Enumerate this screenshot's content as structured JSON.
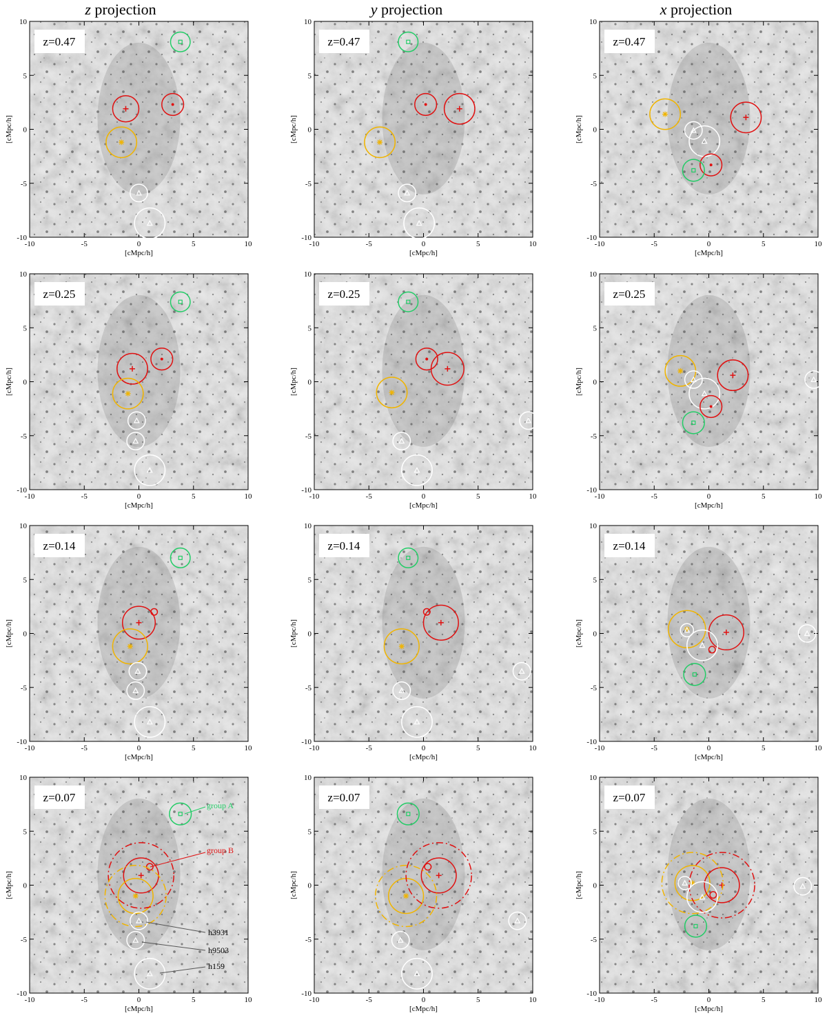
{
  "columns": [
    {
      "key": "z",
      "title_var": "z",
      "title_rest": " projection"
    },
    {
      "key": "y",
      "title_var": "y",
      "title_rest": " projection"
    },
    {
      "key": "x",
      "title_var": "x",
      "title_rest": " projection"
    }
  ],
  "rows": [
    {
      "label": "z=0.47"
    },
    {
      "label": "z=0.25"
    },
    {
      "label": "z=0.14"
    },
    {
      "label": "z=0.07"
    }
  ],
  "axes": {
    "xlabel": "[cMpc/h]",
    "ylabel": "[cMpc/h]",
    "range": [
      -10,
      10
    ],
    "ticks": [
      -10,
      -5,
      0,
      5,
      10
    ]
  },
  "colors": {
    "group_a": "#22cc66",
    "group_b": "#e01010",
    "yellow": "#f0b400",
    "white_halo": "#ffffff",
    "annot_gray": "#555555"
  },
  "annotations": {
    "group_a": "group A",
    "group_b": "group B",
    "h3931": "h3931",
    "h9503": "h9503",
    "h159": "h159"
  },
  "panels": [
    [
      {
        "markers": [
          {
            "type": "square",
            "color": "group_a",
            "x": 3.8,
            "y": 8.1,
            "r": 0.9
          },
          {
            "type": "plus",
            "color": "group_b",
            "x": -1.2,
            "y": 1.9,
            "r": 1.2
          },
          {
            "type": "dot",
            "color": "group_b",
            "x": 3.1,
            "y": 2.3,
            "r": 1.0
          },
          {
            "type": "star",
            "color": "yellow",
            "x": -1.6,
            "y": -1.2,
            "r": 1.4
          },
          {
            "type": "tri",
            "color": "white_halo",
            "x": 0.0,
            "y": -5.9,
            "r": 0.8
          },
          {
            "type": "tri",
            "color": "white_halo",
            "x": 1.0,
            "y": -8.7,
            "r": 1.4
          }
        ]
      },
      {
        "markers": [
          {
            "type": "square",
            "color": "group_a",
            "x": -1.4,
            "y": 8.1,
            "r": 0.9
          },
          {
            "type": "dot",
            "color": "group_b",
            "x": 0.2,
            "y": 2.3,
            "r": 1.0
          },
          {
            "type": "plus",
            "color": "group_b",
            "x": 3.3,
            "y": 1.9,
            "r": 1.4
          },
          {
            "type": "star",
            "color": "yellow",
            "x": -4.0,
            "y": -1.2,
            "r": 1.4
          },
          {
            "type": "tri",
            "color": "white_halo",
            "x": -1.5,
            "y": -5.9,
            "r": 0.8
          },
          {
            "type": "tri",
            "color": "white_halo",
            "x": -0.4,
            "y": -8.7,
            "r": 1.4
          }
        ]
      },
      {
        "markers": [
          {
            "type": "star",
            "color": "yellow",
            "x": -4.0,
            "y": 1.4,
            "r": 1.4
          },
          {
            "type": "plus",
            "color": "group_b",
            "x": 3.4,
            "y": 1.1,
            "r": 1.4
          },
          {
            "type": "tri",
            "color": "white_halo",
            "x": -1.4,
            "y": -0.1,
            "r": 0.8
          },
          {
            "type": "tri",
            "color": "white_halo",
            "x": -0.4,
            "y": -1.1,
            "r": 1.4
          },
          {
            "type": "dot",
            "color": "group_b",
            "x": 0.2,
            "y": -3.3,
            "r": 1.0
          },
          {
            "type": "square",
            "color": "group_a",
            "x": -1.4,
            "y": -3.8,
            "r": 1.0
          }
        ]
      }
    ],
    [
      {
        "markers": [
          {
            "type": "square",
            "color": "group_a",
            "x": 3.8,
            "y": 7.4,
            "r": 0.9
          },
          {
            "type": "dot",
            "color": "group_b",
            "x": 2.1,
            "y": 2.1,
            "r": 1.0
          },
          {
            "type": "plus",
            "color": "group_b",
            "x": -0.6,
            "y": 1.2,
            "r": 1.4
          },
          {
            "type": "star",
            "color": "yellow",
            "x": -1.0,
            "y": -1.1,
            "r": 1.4
          },
          {
            "type": "tri",
            "color": "white_halo",
            "x": -0.2,
            "y": -3.6,
            "r": 0.8
          },
          {
            "type": "tri",
            "color": "white_halo",
            "x": -0.3,
            "y": -5.5,
            "r": 0.8
          },
          {
            "type": "tri",
            "color": "white_halo",
            "x": 1.0,
            "y": -8.2,
            "r": 1.4
          }
        ]
      },
      {
        "markers": [
          {
            "type": "square",
            "color": "group_a",
            "x": -1.4,
            "y": 7.4,
            "r": 0.9
          },
          {
            "type": "dot",
            "color": "group_b",
            "x": 0.3,
            "y": 2.1,
            "r": 1.0
          },
          {
            "type": "plus",
            "color": "group_b",
            "x": 2.2,
            "y": 1.2,
            "r": 1.5
          },
          {
            "type": "star",
            "color": "yellow",
            "x": -2.9,
            "y": -1.0,
            "r": 1.4
          },
          {
            "type": "tri",
            "color": "white_halo",
            "x": 9.6,
            "y": -3.6,
            "r": 0.8
          },
          {
            "type": "tri",
            "color": "white_halo",
            "x": -2.0,
            "y": -5.5,
            "r": 0.8
          },
          {
            "type": "tri",
            "color": "white_halo",
            "x": -0.6,
            "y": -8.2,
            "r": 1.4
          }
        ]
      },
      {
        "markers": [
          {
            "type": "star",
            "color": "yellow",
            "x": -2.6,
            "y": 1.0,
            "r": 1.4
          },
          {
            "type": "plus",
            "color": "group_b",
            "x": 2.2,
            "y": 0.6,
            "r": 1.4
          },
          {
            "type": "tri",
            "color": "white_halo",
            "x": -1.4,
            "y": 0.2,
            "r": 0.8
          },
          {
            "type": "tri",
            "color": "white_halo",
            "x": 9.6,
            "y": 0.2,
            "r": 0.8
          },
          {
            "type": "tri",
            "color": "white_halo",
            "x": -0.4,
            "y": -1.1,
            "r": 1.4
          },
          {
            "type": "dot",
            "color": "group_b",
            "x": 0.2,
            "y": -2.3,
            "r": 1.0
          },
          {
            "type": "square",
            "color": "group_a",
            "x": -1.4,
            "y": -3.8,
            "r": 1.0
          }
        ]
      }
    ],
    [
      {
        "markers": [
          {
            "type": "square",
            "color": "group_a",
            "x": 3.8,
            "y": 7.0,
            "r": 0.9
          },
          {
            "type": "ring",
            "color": "group_b",
            "x": 1.4,
            "y": 2.0,
            "r": 0.3
          },
          {
            "type": "plus",
            "color": "group_b",
            "x": 0.0,
            "y": 1.0,
            "r": 1.5
          },
          {
            "type": "star",
            "color": "yellow",
            "x": -0.8,
            "y": -1.2,
            "r": 1.6
          },
          {
            "type": "tri",
            "color": "white_halo",
            "x": -0.1,
            "y": -3.5,
            "r": 0.8
          },
          {
            "type": "tri",
            "color": "white_halo",
            "x": -0.3,
            "y": -5.3,
            "r": 0.8
          },
          {
            "type": "tri",
            "color": "white_halo",
            "x": 1.0,
            "y": -8.2,
            "r": 1.4
          }
        ]
      },
      {
        "markers": [
          {
            "type": "square",
            "color": "group_a",
            "x": -1.4,
            "y": 7.0,
            "r": 0.9
          },
          {
            "type": "ring",
            "color": "group_b",
            "x": 0.3,
            "y": 2.0,
            "r": 0.3
          },
          {
            "type": "plus",
            "color": "group_b",
            "x": 1.6,
            "y": 1.0,
            "r": 1.6
          },
          {
            "type": "star",
            "color": "yellow",
            "x": -2.0,
            "y": -1.2,
            "r": 1.6
          },
          {
            "type": "tri",
            "color": "white_halo",
            "x": 9.0,
            "y": -3.5,
            "r": 0.8
          },
          {
            "type": "tri",
            "color": "white_halo",
            "x": -2.0,
            "y": -5.3,
            "r": 0.8
          },
          {
            "type": "tri",
            "color": "white_halo",
            "x": -0.6,
            "y": -8.2,
            "r": 1.4
          }
        ]
      },
      {
        "markers": [
          {
            "type": "star",
            "color": "yellow",
            "x": -2.0,
            "y": 0.4,
            "r": 1.7
          },
          {
            "type": "tri",
            "color": "white_halo",
            "x": -2.0,
            "y": 0.3,
            "r": 0.6
          },
          {
            "type": "plus",
            "color": "group_b",
            "x": 1.6,
            "y": 0.1,
            "r": 1.6
          },
          {
            "type": "tri",
            "color": "white_halo",
            "x": 9.0,
            "y": 0.0,
            "r": 0.8
          },
          {
            "type": "tri",
            "color": "white_halo",
            "x": -0.6,
            "y": -1.1,
            "r": 1.4
          },
          {
            "type": "ring",
            "color": "group_b",
            "x": 0.3,
            "y": -1.5,
            "r": 0.3
          },
          {
            "type": "square",
            "color": "group_a",
            "x": -1.3,
            "y": -3.8,
            "r": 1.0
          }
        ]
      }
    ],
    [
      {
        "markers": [
          {
            "type": "square",
            "color": "group_a",
            "x": 3.8,
            "y": 6.6,
            "r": 1.0
          },
          {
            "type": "ring",
            "color": "group_b",
            "x": 1.0,
            "y": 1.7,
            "r": 0.3
          },
          {
            "type": "plus",
            "color": "group_b",
            "x": 0.2,
            "y": 0.9,
            "r": 1.6
          },
          {
            "type": "star",
            "color": "yellow",
            "x": -0.3,
            "y": -1.0,
            "r": 1.6
          },
          {
            "type": "dashcircle",
            "color": "group_b",
            "x": 0.2,
            "y": 0.9,
            "r": 3.0
          },
          {
            "type": "dashcircle",
            "color": "yellow",
            "x": -0.3,
            "y": -1.0,
            "r": 2.8
          },
          {
            "type": "tri",
            "color": "white_halo",
            "x": 0.0,
            "y": -3.3,
            "r": 0.8
          },
          {
            "type": "tri",
            "color": "white_halo",
            "x": -0.3,
            "y": -5.1,
            "r": 0.8
          },
          {
            "type": "tri",
            "color": "white_halo",
            "x": 1.0,
            "y": -8.2,
            "r": 1.4
          }
        ]
      },
      {
        "markers": [
          {
            "type": "square",
            "color": "group_a",
            "x": -1.4,
            "y": 6.6,
            "r": 1.0
          },
          {
            "type": "ring",
            "color": "group_b",
            "x": 0.4,
            "y": 1.7,
            "r": 0.3
          },
          {
            "type": "plus",
            "color": "group_b",
            "x": 1.4,
            "y": 0.9,
            "r": 1.6
          },
          {
            "type": "star",
            "color": "yellow",
            "x": -1.6,
            "y": -1.0,
            "r": 1.6
          },
          {
            "type": "dashcircle",
            "color": "group_b",
            "x": 1.4,
            "y": 0.9,
            "r": 3.0
          },
          {
            "type": "dashcircle",
            "color": "yellow",
            "x": -1.6,
            "y": -1.0,
            "r": 2.8
          },
          {
            "type": "tri",
            "color": "white_halo",
            "x": 8.6,
            "y": -3.3,
            "r": 0.8
          },
          {
            "type": "tri",
            "color": "white_halo",
            "x": -2.1,
            "y": -5.1,
            "r": 0.8
          },
          {
            "type": "tri",
            "color": "white_halo",
            "x": -0.6,
            "y": -8.2,
            "r": 1.4
          }
        ]
      },
      {
        "markers": [
          {
            "type": "star",
            "color": "yellow",
            "x": -1.5,
            "y": 0.2,
            "r": 1.6
          },
          {
            "type": "tri",
            "color": "white_halo",
            "x": -2.2,
            "y": 0.2,
            "r": 0.6
          },
          {
            "type": "plus",
            "color": "group_b",
            "x": 1.2,
            "y": 0.0,
            "r": 1.6
          },
          {
            "type": "dashcircle",
            "color": "group_b",
            "x": 1.2,
            "y": 0.0,
            "r": 3.0
          },
          {
            "type": "dashcircle",
            "color": "yellow",
            "x": -1.5,
            "y": 0.2,
            "r": 2.8
          },
          {
            "type": "tri",
            "color": "white_halo",
            "x": 8.6,
            "y": -0.1,
            "r": 0.8
          },
          {
            "type": "tri",
            "color": "white_halo",
            "x": -0.6,
            "y": -1.1,
            "r": 1.4
          },
          {
            "type": "ring",
            "color": "group_b",
            "x": 0.4,
            "y": -0.9,
            "r": 0.3
          },
          {
            "type": "square",
            "color": "group_a",
            "x": -1.2,
            "y": -3.8,
            "r": 1.0
          }
        ]
      }
    ]
  ]
}
